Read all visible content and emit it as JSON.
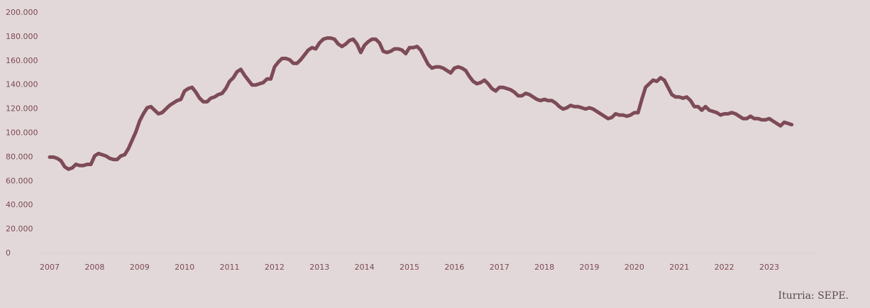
{
  "chart_data": {
    "type": "line",
    "source": "Iturria: SEPE.",
    "categories": [
      "2007",
      null,
      null,
      null,
      null,
      null,
      null,
      null,
      null,
      null,
      null,
      null,
      "2008",
      null,
      null,
      null,
      null,
      null,
      null,
      null,
      null,
      null,
      null,
      null,
      "2009",
      null,
      null,
      null,
      null,
      null,
      null,
      null,
      null,
      null,
      null,
      null,
      "2010",
      null,
      null,
      null,
      null,
      null,
      null,
      null,
      null,
      null,
      null,
      null,
      "2011",
      null,
      null,
      null,
      null,
      null,
      null,
      null,
      null,
      null,
      null,
      null,
      "2012",
      null,
      null,
      null,
      null,
      null,
      null,
      null,
      null,
      null,
      null,
      null,
      "2013",
      null,
      null,
      null,
      null,
      null,
      null,
      null,
      null,
      null,
      null,
      null,
      "2014",
      null,
      null,
      null,
      null,
      null,
      null,
      null,
      null,
      null,
      null,
      null,
      "2015",
      null,
      null,
      null,
      null,
      null,
      null,
      null,
      null,
      null,
      null,
      null,
      "2016",
      null,
      null,
      null,
      null,
      null,
      null,
      null,
      null,
      null,
      null,
      null,
      "2017",
      null,
      null,
      null,
      null,
      null,
      null,
      null,
      null,
      null,
      null,
      null,
      "2018",
      null,
      null,
      null,
      null,
      null,
      null,
      null,
      null,
      null,
      null,
      null,
      "2019",
      null,
      null,
      null,
      null,
      null,
      null,
      null,
      null,
      null,
      null,
      null,
      "2020",
      null,
      null,
      null,
      null,
      null,
      null,
      null,
      null,
      null,
      null,
      null,
      "2021",
      null,
      null,
      null,
      null,
      null,
      null,
      null,
      null,
      null,
      null,
      null,
      "2022",
      null,
      null,
      null,
      null,
      null,
      null,
      null,
      null,
      null,
      null,
      null,
      "2023",
      null,
      null,
      null,
      null,
      null,
      null
    ],
    "values": [
      80000,
      80000,
      79000,
      77000,
      72000,
      70000,
      71000,
      74000,
      73000,
      73000,
      74000,
      74000,
      81000,
      83000,
      82000,
      81000,
      79000,
      78000,
      78000,
      81000,
      82000,
      87000,
      94000,
      101000,
      110000,
      116000,
      121000,
      122000,
      119000,
      116000,
      117000,
      120000,
      123000,
      125000,
      127000,
      128000,
      135000,
      137000,
      138000,
      134000,
      129000,
      126000,
      126000,
      129000,
      130000,
      132000,
      133000,
      137000,
      143000,
      146000,
      151000,
      153000,
      148000,
      144000,
      140000,
      140000,
      141000,
      142000,
      145000,
      145000,
      155000,
      159000,
      162000,
      162000,
      161000,
      158000,
      158000,
      161000,
      165000,
      169000,
      171000,
      170000,
      175000,
      178000,
      179000,
      179000,
      178000,
      174000,
      172000,
      174000,
      177000,
      178000,
      174000,
      167000,
      173000,
      176000,
      178000,
      178000,
      175000,
      168000,
      167000,
      168000,
      170000,
      170000,
      169000,
      166000,
      171000,
      171000,
      172000,
      169000,
      163000,
      157000,
      154000,
      155000,
      155000,
      154000,
      152000,
      150000,
      154000,
      155000,
      154000,
      152000,
      147000,
      143000,
      141000,
      142000,
      144000,
      141000,
      137000,
      135000,
      138000,
      138000,
      137000,
      136000,
      134000,
      131000,
      131000,
      133000,
      132000,
      130000,
      128000,
      127000,
      128000,
      127000,
      127000,
      125000,
      122000,
      120000,
      121000,
      123000,
      122000,
      122000,
      121000,
      120000,
      121000,
      120000,
      118000,
      116000,
      114000,
      112000,
      113000,
      116000,
      115000,
      115000,
      114000,
      115000,
      117000,
      117000,
      128000,
      138000,
      141000,
      144000,
      143000,
      146000,
      144000,
      138000,
      132000,
      130000,
      130000,
      129000,
      130000,
      127000,
      122000,
      122000,
      119000,
      122000,
      119000,
      118000,
      117000,
      115000,
      116000,
      116000,
      117000,
      116000,
      114000,
      112000,
      112000,
      114000,
      112000,
      112000,
      111000,
      111000,
      112000,
      110000,
      108000,
      106000,
      109000,
      108000,
      107000
    ],
    "color": "#7d4b57",
    "ylim": [
      0,
      200000
    ],
    "yticks": [
      {
        "value": 0,
        "label": "0"
      },
      {
        "value": 20000,
        "label": "20.000"
      },
      {
        "value": 40000,
        "label": "40.000"
      },
      {
        "value": 60000,
        "label": "60.000"
      },
      {
        "value": 80000,
        "label": "80.000"
      },
      {
        "value": 100000,
        "label": "100.000"
      },
      {
        "value": 120000,
        "label": "120.000"
      },
      {
        "value": 140000,
        "label": "140.000"
      },
      {
        "value": 160000,
        "label": "160.000"
      },
      {
        "value": 180000,
        "label": "180.000"
      },
      {
        "value": 200000,
        "label": "200.000"
      }
    ],
    "grid": false
  }
}
